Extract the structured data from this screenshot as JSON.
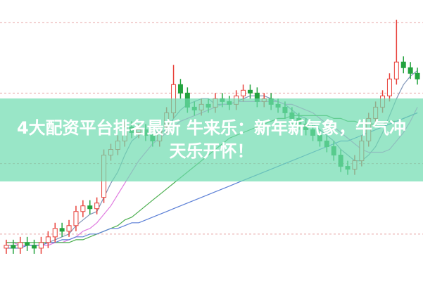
{
  "chart_data": {
    "type": "candlestick",
    "title": "4大配资平台排名最新 牛来乐：新年新气象，牛气冲天乐开怀！",
    "open": [
      12,
      13,
      12,
      14,
      13,
      12,
      14,
      16,
      19,
      18,
      20,
      25,
      27,
      26,
      30,
      45,
      47,
      50,
      55,
      53,
      54,
      52,
      50,
      55,
      60,
      70,
      67,
      62,
      61,
      63,
      62,
      65,
      64,
      63,
      66,
      68,
      67,
      64,
      65,
      63,
      62,
      60,
      58,
      56,
      54,
      52,
      50,
      48,
      45,
      41,
      40,
      43,
      50,
      58,
      62,
      66,
      72,
      78,
      76,
      74
    ],
    "close": [
      13,
      12,
      14,
      13,
      12,
      14,
      16,
      19,
      18,
      20,
      25,
      27,
      26,
      28,
      45,
      47,
      50,
      55,
      53,
      54,
      52,
      50,
      55,
      60,
      70,
      67,
      62,
      61,
      63,
      62,
      65,
      64,
      63,
      66,
      68,
      67,
      64,
      65,
      63,
      62,
      60,
      58,
      56,
      54,
      52,
      50,
      48,
      45,
      41,
      40,
      43,
      50,
      58,
      62,
      66,
      72,
      78,
      76,
      74,
      72
    ],
    "high": [
      15,
      15,
      16,
      16,
      15,
      16,
      18,
      21,
      21,
      22,
      27,
      29,
      29,
      30,
      47,
      49,
      52,
      57,
      57,
      56,
      56,
      54,
      57,
      62,
      77,
      72,
      69,
      64,
      65,
      65,
      67,
      67,
      66,
      68,
      70,
      70,
      69,
      67,
      67,
      65,
      64,
      62,
      60,
      58,
      56,
      54,
      52,
      50,
      47,
      43,
      45,
      52,
      60,
      64,
      68,
      74,
      93,
      80,
      78,
      76
    ],
    "low": [
      10,
      10,
      10,
      11,
      10,
      10,
      12,
      14,
      16,
      16,
      18,
      23,
      24,
      24,
      28,
      43,
      45,
      48,
      51,
      51,
      50,
      48,
      48,
      53,
      58,
      65,
      60,
      59,
      59,
      60,
      60,
      62,
      61,
      61,
      64,
      65,
      62,
      62,
      61,
      60,
      58,
      56,
      54,
      52,
      50,
      48,
      46,
      43,
      39,
      38,
      38,
      41,
      48,
      56,
      60,
      64,
      70,
      74,
      72,
      70
    ],
    "up_color": "#e8413a",
    "down_color": "#23a33e",
    "series": [
      {
        "color": "#7f95b8",
        "values": [
          13,
          13,
          13,
          13,
          13,
          13,
          14,
          15,
          16,
          17,
          20,
          22,
          24,
          25,
          30,
          35,
          39,
          45,
          50,
          52,
          53,
          53,
          53,
          54,
          58,
          61,
          63,
          64,
          65,
          65,
          63,
          63,
          63,
          64,
          65,
          66,
          66,
          66,
          65,
          64,
          63,
          61,
          59,
          58,
          56,
          54,
          52,
          50,
          47,
          45,
          43,
          43,
          45,
          48,
          53,
          59,
          65,
          70,
          73,
          75
        ]
      },
      {
        "color": "#e07be0",
        "values": [
          14,
          14,
          13,
          13,
          13,
          13,
          13,
          14,
          14,
          15,
          16,
          18,
          19,
          21,
          24,
          27,
          31,
          35,
          39,
          43,
          46,
          49,
          51,
          53,
          55,
          57,
          58,
          59,
          60,
          61,
          62,
          63,
          63,
          64,
          64,
          64,
          64,
          64,
          64,
          64,
          63,
          63,
          62,
          61,
          60,
          58,
          56,
          55,
          53,
          51,
          49,
          47,
          46,
          46,
          46,
          47,
          50,
          53,
          57,
          62
        ]
      },
      {
        "color": "#4caf50",
        "values": [
          14,
          14,
          14,
          14,
          14,
          14,
          14,
          14,
          14,
          14,
          15,
          15,
          16,
          17,
          18,
          19,
          20,
          22,
          23,
          25,
          27,
          29,
          31,
          33,
          35,
          37,
          39,
          41,
          43,
          45,
          47,
          49,
          51,
          52,
          53,
          54,
          55,
          56,
          57,
          58,
          58,
          59,
          59,
          59,
          59,
          59,
          59,
          58,
          58,
          57,
          57,
          56,
          56,
          56,
          56,
          57,
          57,
          58,
          59,
          60
        ]
      },
      {
        "color": "#5b7fd6",
        "values": [
          12,
          12,
          12,
          13,
          13,
          13,
          14,
          14,
          15,
          15,
          16,
          16,
          17,
          17,
          18,
          19,
          19,
          20,
          21,
          21,
          22,
          23,
          24,
          25,
          26,
          27,
          28,
          29,
          30,
          31,
          32,
          33,
          34,
          35,
          36,
          37,
          38,
          39,
          40,
          41,
          42,
          43,
          44,
          45,
          46,
          47,
          48,
          49,
          50,
          50,
          51,
          52,
          53,
          54,
          55,
          56,
          57,
          58,
          59,
          60
        ]
      }
    ],
    "ylim": [
      0,
      100
    ],
    "yticks": [
      17,
      42,
      67,
      92
    ],
    "grid": true
  }
}
